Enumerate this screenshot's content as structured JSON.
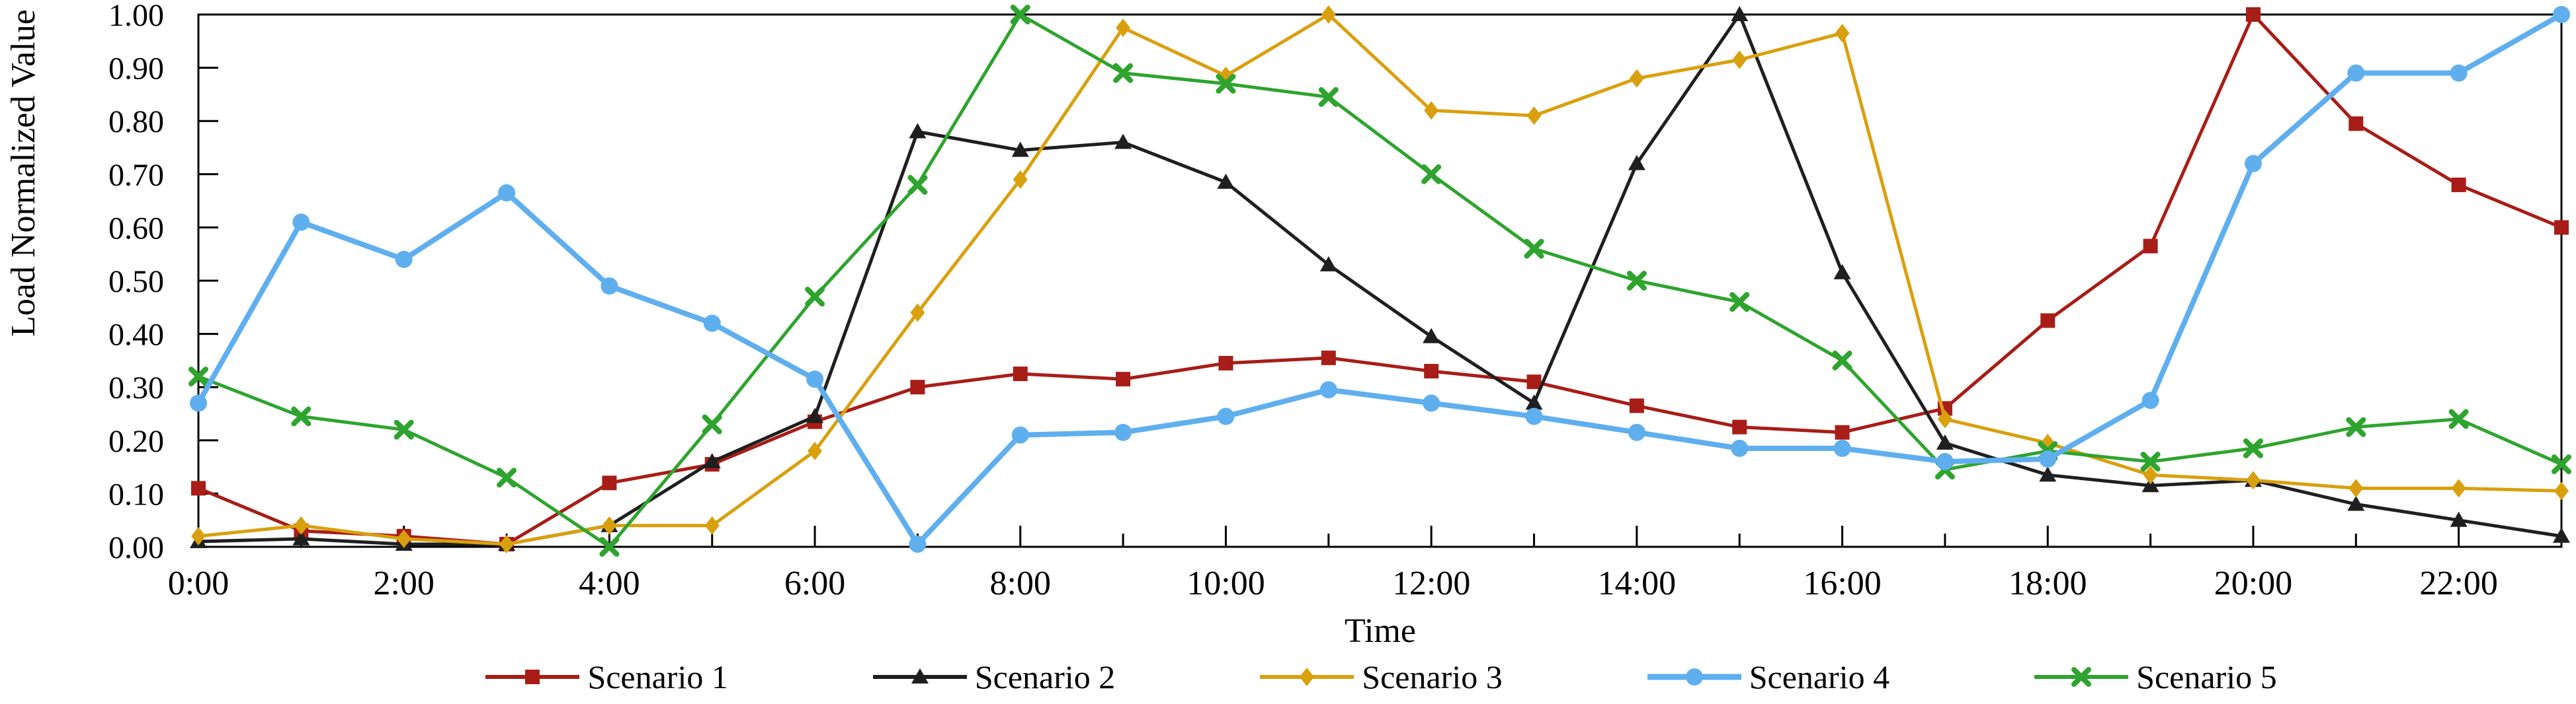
{
  "chart_data": {
    "type": "line",
    "title": "",
    "xlabel": "Time",
    "ylabel": "Load Normalized Value",
    "x_hours": [
      0,
      1,
      2,
      3,
      4,
      5,
      6,
      7,
      8,
      9,
      10,
      11,
      12,
      13,
      14,
      15,
      16,
      17,
      18,
      19,
      20,
      21,
      22,
      23
    ],
    "x_tick_labels": [
      "0:00",
      "2:00",
      "4:00",
      "6:00",
      "8:00",
      "10:00",
      "12:00",
      "14:00",
      "16:00",
      "18:00",
      "20:00",
      "22:00"
    ],
    "ytick_labels": [
      "0.00",
      "0.10",
      "0.20",
      "0.30",
      "0.40",
      "0.50",
      "0.60",
      "0.70",
      "0.80",
      "0.90",
      "1.00"
    ],
    "ylim": [
      0,
      1
    ],
    "ytick_step": 0.1,
    "grid": false,
    "legend_position": "bottom",
    "series": [
      {
        "name": "Scenario 1",
        "color": "#a81d17",
        "marker": "square",
        "line_width": 5,
        "values": [
          0.11,
          0.03,
          0.02,
          0.005,
          0.12,
          0.155,
          0.235,
          0.3,
          0.325,
          0.315,
          0.345,
          0.355,
          0.33,
          0.31,
          0.265,
          0.225,
          0.215,
          0.26,
          0.425,
          0.565,
          1.0,
          0.795,
          0.68,
          0.6
        ]
      },
      {
        "name": "Scenario 2",
        "color": "#1f1f1f",
        "marker": "triangle",
        "line_width": 5,
        "values": [
          0.01,
          0.015,
          0.005,
          0.005,
          0.04,
          0.16,
          0.245,
          0.78,
          0.745,
          0.76,
          0.685,
          0.53,
          0.395,
          0.27,
          0.72,
          1.0,
          0.515,
          0.195,
          0.135,
          0.115,
          0.125,
          0.08,
          0.05,
          0.02
        ]
      },
      {
        "name": "Scenario 3",
        "color": "#d9a00e",
        "marker": "diamond",
        "line_width": 5,
        "values": [
          0.02,
          0.04,
          0.015,
          0.005,
          0.04,
          0.04,
          0.18,
          0.44,
          0.69,
          0.975,
          0.885,
          1.0,
          0.82,
          0.81,
          0.88,
          0.915,
          0.965,
          0.24,
          0.195,
          0.135,
          0.125,
          0.11,
          0.11,
          0.105
        ]
      },
      {
        "name": "Scenario 4",
        "color": "#5fafef",
        "marker": "circle",
        "line_width": 8,
        "values": [
          0.27,
          0.61,
          0.54,
          0.665,
          0.49,
          0.42,
          0.315,
          0.005,
          0.21,
          0.215,
          0.245,
          0.295,
          0.27,
          0.245,
          0.215,
          0.185,
          0.185,
          0.16,
          0.165,
          0.275,
          0.72,
          0.89,
          0.89,
          1.0
        ]
      },
      {
        "name": "Scenario 5",
        "color": "#2ea42e",
        "marker": "x",
        "line_width": 5,
        "values": [
          0.32,
          0.245,
          0.22,
          0.13,
          0.0,
          0.23,
          0.47,
          0.68,
          1.0,
          0.89,
          0.87,
          0.845,
          0.7,
          0.56,
          0.5,
          0.46,
          0.35,
          0.145,
          0.18,
          0.16,
          0.185,
          0.225,
          0.24,
          0.155
        ]
      }
    ]
  },
  "colors": {
    "axis": "#000000",
    "background": "#ffffff"
  }
}
